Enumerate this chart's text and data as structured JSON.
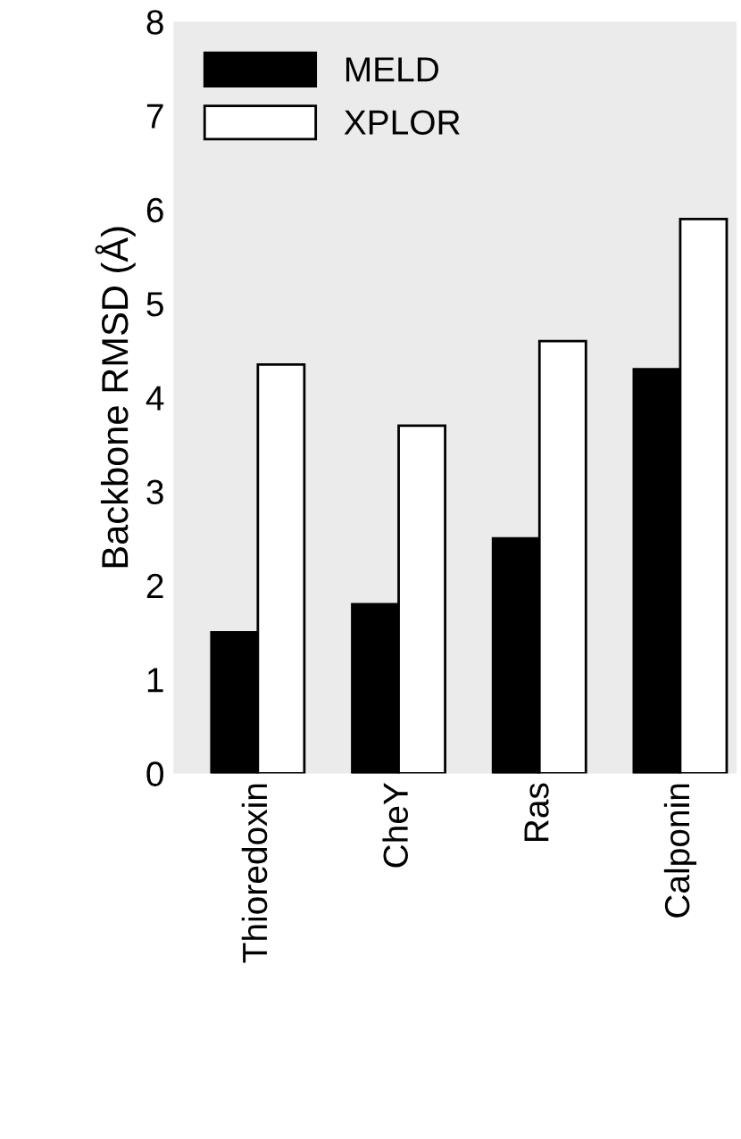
{
  "chart_data": {
    "type": "bar",
    "ylabel": "Backbone RMSD (Å)",
    "categories": [
      "Thioredoxin",
      "CheY",
      "Ras",
      "Calponin"
    ],
    "series": [
      {
        "name": "MELD",
        "color": "#000000",
        "values": [
          1.5,
          1.8,
          2.5,
          4.3
        ]
      },
      {
        "name": "XPLOR",
        "color": "#ffffff",
        "values": [
          4.35,
          3.7,
          4.6,
          5.9
        ]
      }
    ],
    "ylim": [
      0,
      8
    ],
    "yticks": [
      0,
      1,
      2,
      3,
      4,
      5,
      6,
      7,
      8
    ],
    "legend": "top left"
  }
}
